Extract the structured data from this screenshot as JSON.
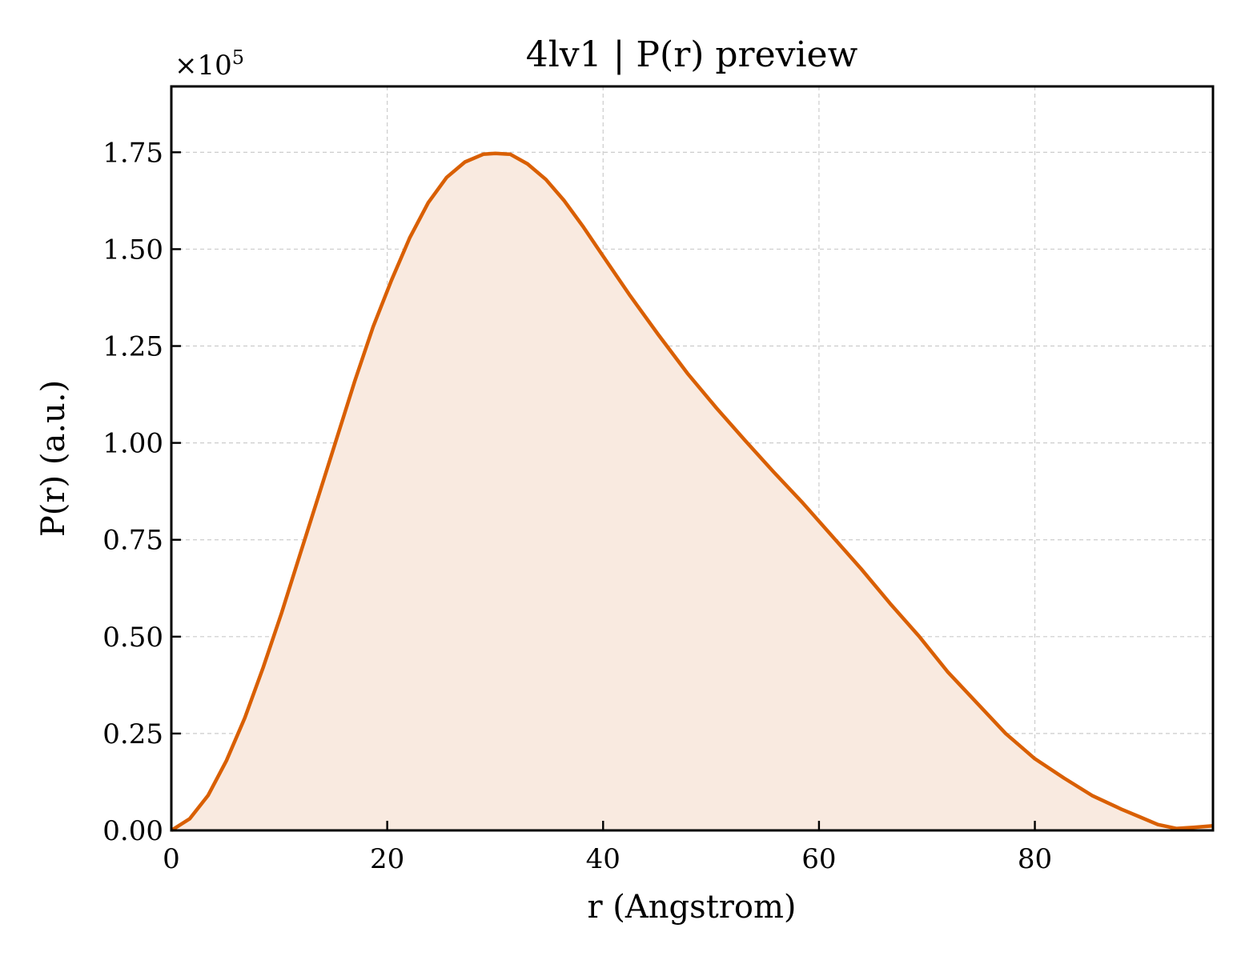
{
  "colors": {
    "line": "#d95f02",
    "fill": "#f9eae0"
  },
  "chart_data": {
    "type": "area",
    "title": "4lv1 | P(r) preview",
    "xlabel": "r (Angstrom)",
    "ylabel": "P(r) (a.u.)",
    "y_offset_label": "×10",
    "y_offset_exponent": "5",
    "xlim": [
      0,
      96.5
    ],
    "ylim": [
      0,
      1.92
    ],
    "grid": true,
    "x_ticks": [
      0,
      20,
      40,
      60,
      80
    ],
    "x_tick_labels": [
      "0",
      "20",
      "40",
      "60",
      "80"
    ],
    "y_ticks": [
      0,
      0.25,
      0.5,
      0.75,
      1.0,
      1.25,
      1.5,
      1.75
    ],
    "y_tick_labels": [
      "0.00",
      "0.25",
      "0.50",
      "0.75",
      "1.00",
      "1.25",
      "1.50",
      "1.75"
    ],
    "series": [
      {
        "x": [
          0,
          1.7,
          3.4,
          5.1,
          6.8,
          8.5,
          10.2,
          11.9,
          13.6,
          15.3,
          17.0,
          18.7,
          20.4,
          22.1,
          23.8,
          25.5,
          27.2,
          28.9,
          30.0,
          31.4,
          33.0,
          34.7,
          36.4,
          38.1,
          39.8,
          42.5,
          45.1,
          47.8,
          50.5,
          53.2,
          55.8,
          58.5,
          61.2,
          63.9,
          66.6,
          69.3,
          71.9,
          74.6,
          77.3,
          80.0,
          82.7,
          85.3,
          88.0,
          89.7,
          91.4,
          93.1,
          94.8,
          96.5
        ],
        "y": [
          0.0,
          0.03,
          0.09,
          0.18,
          0.29,
          0.42,
          0.56,
          0.71,
          0.86,
          1.01,
          1.16,
          1.3,
          1.42,
          1.53,
          1.62,
          1.685,
          1.725,
          1.745,
          1.747,
          1.745,
          1.72,
          1.68,
          1.625,
          1.56,
          1.49,
          1.38,
          1.28,
          1.18,
          1.09,
          1.005,
          0.925,
          0.845,
          0.76,
          0.675,
          0.585,
          0.5,
          0.41,
          0.33,
          0.25,
          0.185,
          0.135,
          0.09,
          0.055,
          0.035,
          0.015,
          0.005,
          0.008,
          0.012
        ]
      }
    ]
  }
}
